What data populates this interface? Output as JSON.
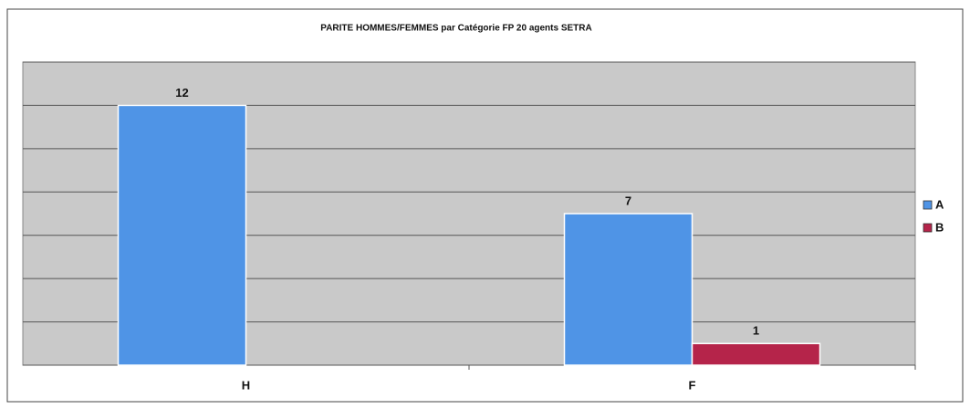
{
  "chart_data": {
    "type": "bar",
    "title": "PARITE HOMMES/FEMMES par Catégorie FP 20 agents SETRA",
    "categories": [
      "H",
      "F"
    ],
    "series": [
      {
        "name": "A",
        "color": "#4f94e6",
        "values": [
          12,
          7
        ]
      },
      {
        "name": "B",
        "color": "#b5244a",
        "values": [
          null,
          1
        ]
      }
    ],
    "ylim": [
      0,
      14
    ],
    "yticks": [
      0,
      2,
      4,
      6,
      8,
      10,
      12,
      14
    ],
    "grid": true,
    "legend": "right"
  }
}
